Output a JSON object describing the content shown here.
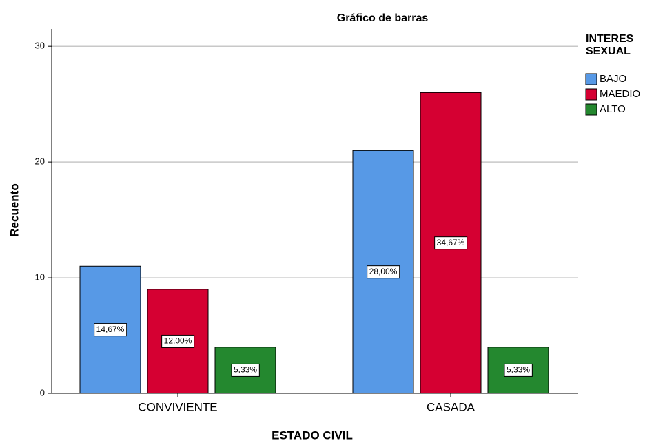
{
  "chart_data": {
    "type": "bar",
    "title": "Gráfico de barras",
    "x_label": "ESTADO CIVIL",
    "y_label": "Recuento",
    "categories": [
      "CONVIVIENTE",
      "CASADA"
    ],
    "legend_title": "INTERES SEXUAL",
    "legend_position": "right",
    "series": [
      {
        "name": "BAJO",
        "color": "#5799e6",
        "values": [
          11,
          21
        ],
        "percent_labels": [
          "14,67%",
          "28,00%"
        ]
      },
      {
        "name": "MAEDIO",
        "color": "#d50032",
        "values": [
          9,
          26
        ],
        "percent_labels": [
          "12,00%",
          "34,67%"
        ]
      },
      {
        "name": "ALTO",
        "color": "#24882f",
        "values": [
          4,
          4
        ],
        "percent_labels": [
          "5,33%",
          "5,33%"
        ]
      }
    ],
    "ylim": [
      0,
      31.5
    ],
    "yticks": [
      0,
      10,
      20,
      30
    ],
    "grid": true
  }
}
